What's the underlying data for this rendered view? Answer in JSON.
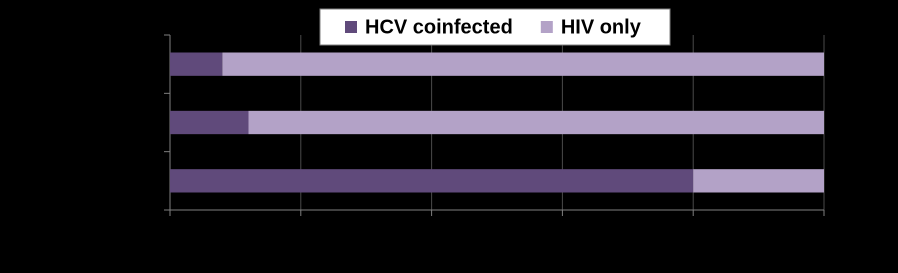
{
  "chart_data": {
    "type": "stacked-bar-horizontal",
    "categories": [
      null,
      null,
      null
    ],
    "series": [
      {
        "name": "HCV coinfected",
        "color": "#604a7b",
        "values": [
          8,
          12,
          80
        ]
      },
      {
        "name": "HIV only",
        "color": "#b3a2c7",
        "values": [
          92,
          88,
          20
        ]
      }
    ],
    "xlim": [
      0,
      100
    ],
    "xticks": [
      0,
      20,
      40,
      60,
      80,
      100
    ],
    "grid": true,
    "legend": "top"
  }
}
